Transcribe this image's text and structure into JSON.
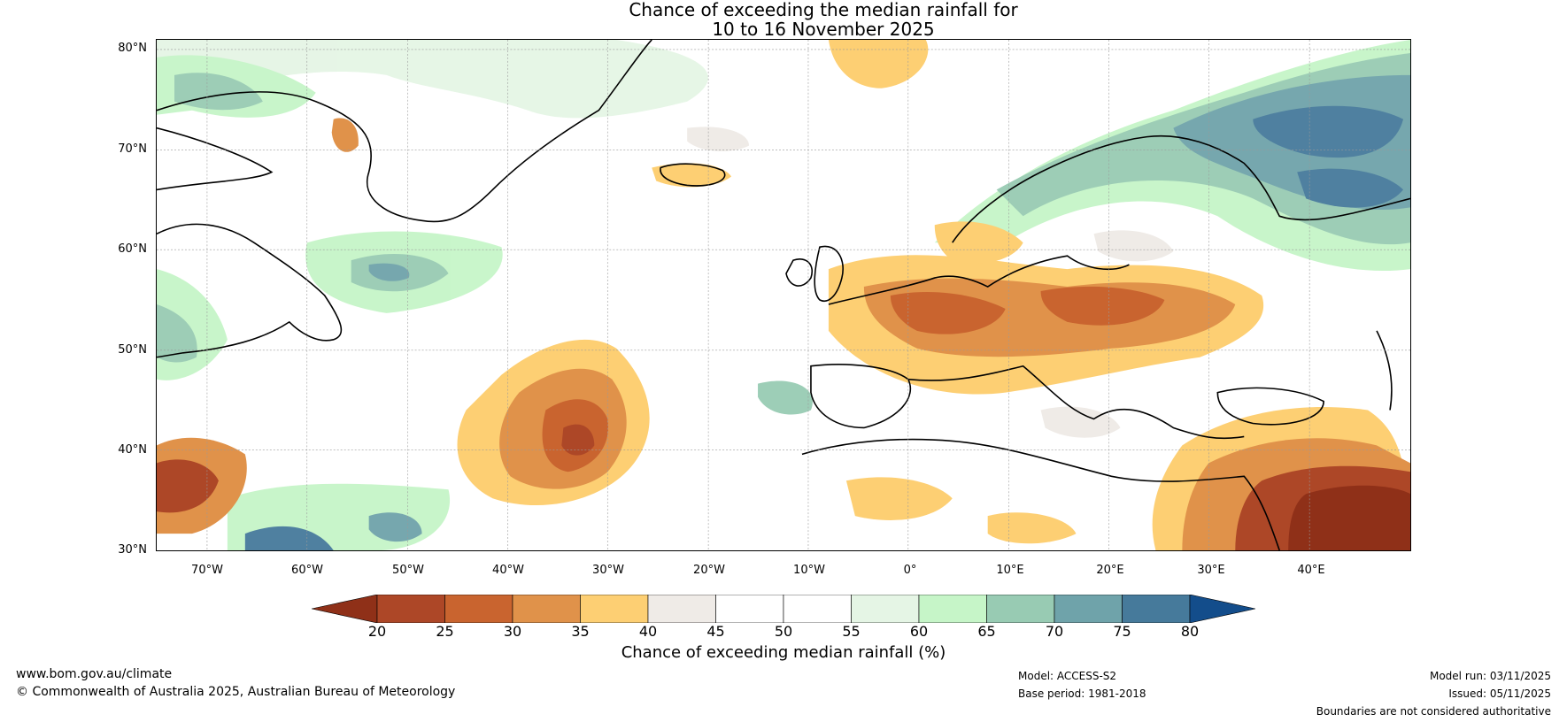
{
  "title": {
    "line1": "Chance of exceeding the median rainfall for",
    "line2": "10 to 16 November 2025"
  },
  "map": {
    "latitude_labels": [
      "80°N",
      "70°N",
      "60°N",
      "50°N",
      "40°N",
      "30°N"
    ],
    "longitude_labels": [
      "70°W",
      "60°W",
      "50°W",
      "40°W",
      "30°W",
      "20°W",
      "10°W",
      "0°",
      "10°E",
      "20°E",
      "30°E",
      "40°E"
    ],
    "extent": {
      "lon_min": -75,
      "lon_max": 50,
      "lat_min": 30,
      "lat_max": 81
    }
  },
  "colorbar": {
    "ticks": [
      "20",
      "25",
      "30",
      "35",
      "40",
      "45",
      "50",
      "55",
      "60",
      "65",
      "70",
      "75",
      "80"
    ],
    "colors": [
      "#8f3018",
      "#ad4727",
      "#c9642f",
      "#e0924a",
      "#fdcf73",
      "#efebe7",
      "#ffffff",
      "#ffffff",
      "#e5f5e5",
      "#c6f5c8",
      "#98cbb3",
      "#6fa3aa",
      "#467a9b",
      "#134d8b"
    ],
    "label": "Chance of exceeding median rainfall (%)"
  },
  "footer": {
    "website": "www.bom.gov.au/climate",
    "copyright": "© Commonwealth of Australia 2025, Australian Bureau of Meteorology",
    "model": "Model: ACCESS-S2",
    "base_period": "Base period: 1981-2018",
    "model_run": "Model run: 03/11/2025",
    "issued": "Issued: 05/11/2025",
    "disclaimer": "Boundaries are not considered authoritative"
  }
}
